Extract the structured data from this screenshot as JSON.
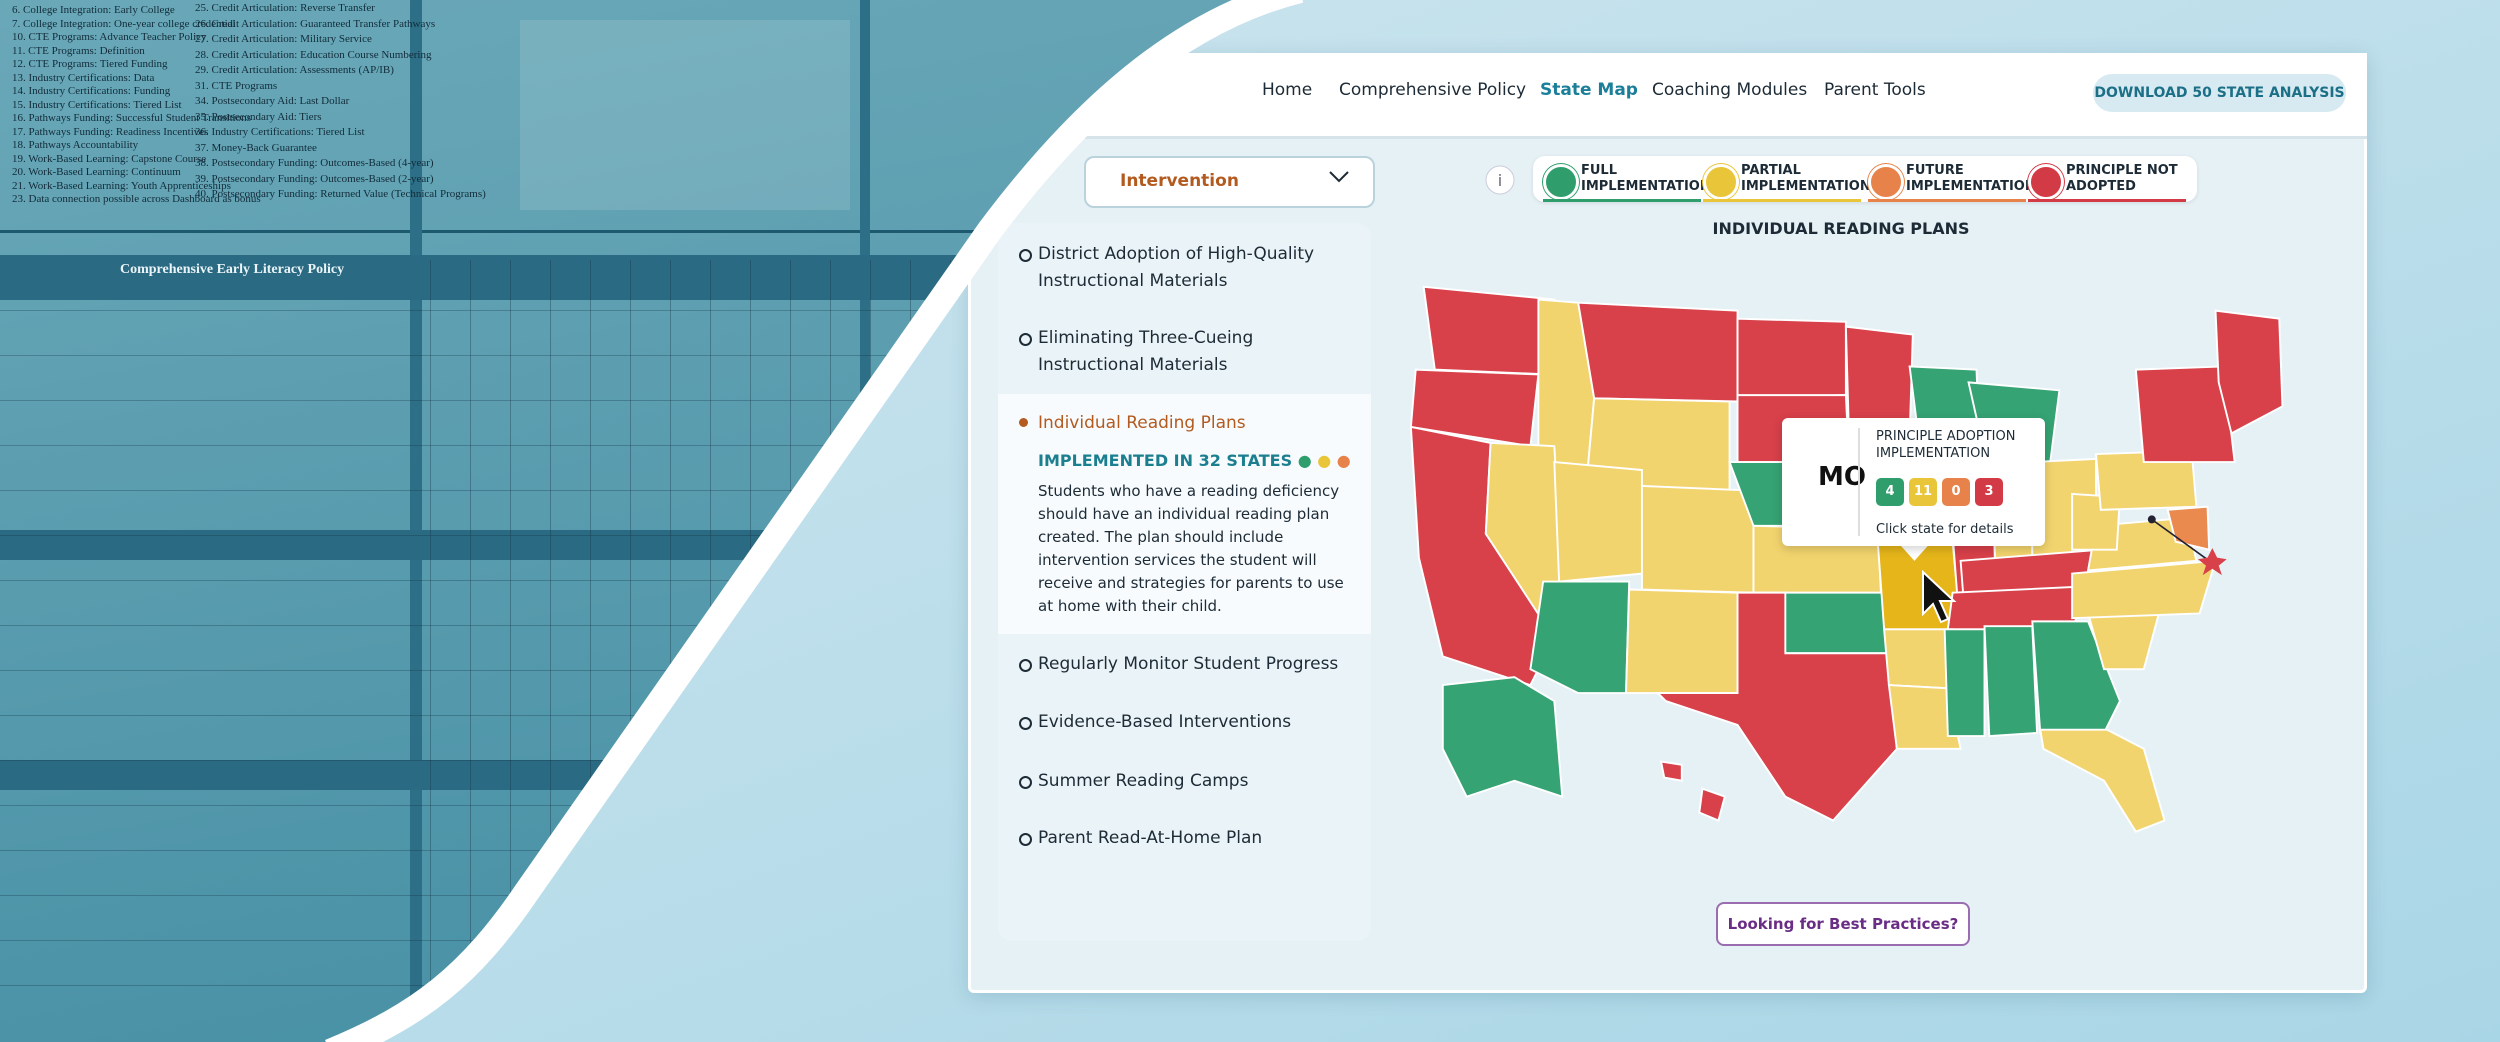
{
  "collage": {
    "title": "Comprehensive Early Literacy Policy",
    "left_list": [
      "6. College Integration: Early College",
      "7. College Integration: One-year college credential",
      "10. CTE Programs: Advance Teacher Policy",
      "11. CTE Programs: Definition",
      "12. CTE Programs: Tiered Funding",
      "13. Industry Certifications: Data",
      "14. Industry Certifications: Funding",
      "15. Industry Certifications: Tiered List",
      "16. Pathways Funding: Successful Student Transitions",
      "17. Pathways Funding: Readiness Incentives",
      "18. Pathways Accountability",
      "19. Work-Based Learning: Capstone Course",
      "20. Work-Based Learning: Continuum",
      "21. Work-Based Learning: Youth Apprenticeships",
      "23. Data connection possible across Dashboard as bonus"
    ],
    "right_list": [
      "25. Credit Articulation: Reverse Transfer",
      "26. Credit Articulation: Guaranteed Transfer Pathways",
      "27. Credit Articulation: Military Service",
      "28. Credit Articulation: Education Course Numbering",
      "29. Credit Articulation: Assessments (AP/IB)",
      "31. CTE Programs",
      "34. Postsecondary Aid: Last Dollar",
      "35. Postsecondary Aid: Tiers",
      "36. Industry Certifications: Tiered List",
      "37. Money-Back Guarantee",
      "38. Postsecondary Funding: Outcomes-Based (4-year)",
      "39. Postsecondary Funding: Outcomes-Based (2-year)",
      "40. Postsecondary Funding: Returned Value (Technical Programs)"
    ]
  },
  "nav": {
    "links": [
      "Home",
      "Comprehensive Policy",
      "State Map",
      "Coaching Modules",
      "Parent Tools"
    ],
    "download": "DOWNLOAD 50 STATE ANALYSIS"
  },
  "sidebar": {
    "dropdown": "Intervention",
    "items": [
      "District Adoption of High-Quality Instructional Materials",
      "Eliminating Three-Cueing Instructional Materials",
      "Individual Reading Plans",
      "Regularly Monitor Student Progress",
      "Evidence-Based Interventions",
      "Summer Reading Camps",
      "Parent Read-At-Home Plan"
    ],
    "status": "IMPLEMENTED IN 32 STATES",
    "description": "Students who have a reading deficiency should have an individual reading plan created. The plan should include intervention services the student will receive and strategies for parents to use at home with their child."
  },
  "legend": [
    {
      "label": "FULL IMPLEMENTATION",
      "color": "#2f9e6c"
    },
    {
      "label": "PARTIAL IMPLEMENTATION",
      "color": "#e9c53a"
    },
    {
      "label": "FUTURE IMPLEMENTATION",
      "color": "#e7834a"
    },
    {
      "label": "PRINCIPLE NOT ADOPTED",
      "color": "#d23a45"
    }
  ],
  "map": {
    "title": "INDIVIDUAL READING PLANS",
    "tooltip": {
      "state": "MO",
      "heading": "PRINCIPLE ADOPTION IMPLEMENTATION",
      "counts": [
        4,
        11,
        0,
        3
      ],
      "hint": "Click state for details"
    }
  },
  "button": "Looking for Best Practices?"
}
